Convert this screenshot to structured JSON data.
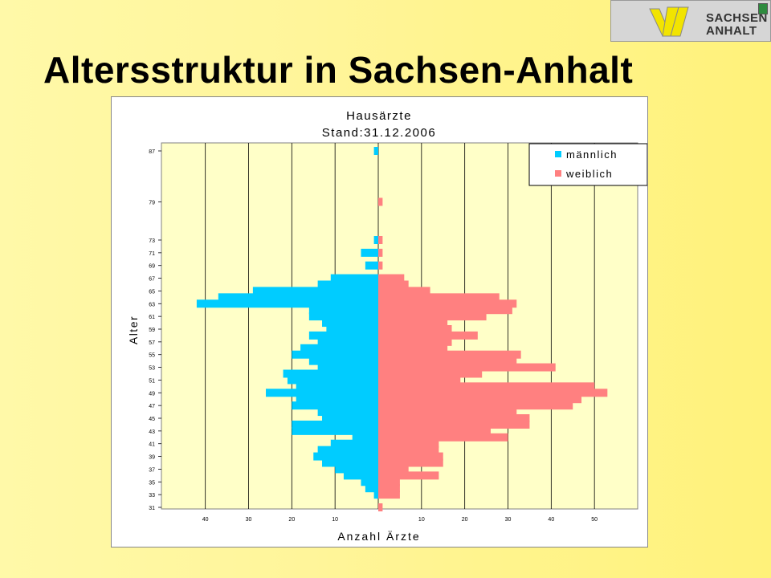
{
  "slide": {
    "title": "Altersstruktur in Sachsen-Anhalt",
    "logo_text_line1": "SACHSEN",
    "logo_text_line2": "ANHALT"
  },
  "chart_data": {
    "type": "bar",
    "orientation": "horizontal-pyramid",
    "title": "Hausärzte",
    "subtitle": "Stand:31.12.2006",
    "xlabel": "Anzahl Ärzte",
    "ylabel": "Alter",
    "grid": true,
    "legend_position": "top-right",
    "x_ticks_left": [
      "40",
      "30",
      "20",
      "10"
    ],
    "x_ticks_right": [
      "10",
      "20",
      "30",
      "40",
      "50"
    ],
    "x_max": 60,
    "y_tick_labels": [
      "87",
      "79",
      "73",
      "71",
      "69",
      "67",
      "65",
      "63",
      "61",
      "59",
      "57",
      "55",
      "53",
      "51",
      "49",
      "47",
      "45",
      "43",
      "41",
      "39",
      "37",
      "35",
      "33",
      "31"
    ],
    "ages": [
      87,
      79,
      73,
      71,
      69,
      67,
      66,
      65,
      64,
      63,
      62,
      61,
      60,
      59,
      58,
      57,
      56,
      55,
      54,
      53,
      52,
      51,
      50,
      49,
      48,
      47,
      46,
      45,
      44,
      43,
      42,
      41,
      40,
      39,
      38,
      37,
      36,
      35,
      34,
      33,
      32,
      31
    ],
    "series": [
      {
        "name": "männlich",
        "color": "#00ccff",
        "values": [
          1,
          0,
          1,
          4,
          3,
          11,
          14,
          29,
          37,
          42,
          16,
          16,
          13,
          12,
          16,
          14,
          18,
          20,
          16,
          14,
          22,
          21,
          19,
          26,
          19,
          20,
          14,
          13,
          20,
          20,
          6,
          11,
          14,
          15,
          13,
          10,
          8,
          4,
          3,
          1,
          0,
          0
        ],
        "side": "left"
      },
      {
        "name": "weiblich",
        "color": "#ff8080",
        "values": [
          0,
          1,
          1,
          1,
          1,
          6,
          7,
          12,
          28,
          32,
          31,
          25,
          16,
          17,
          23,
          17,
          16,
          33,
          32,
          41,
          24,
          19,
          50,
          53,
          47,
          45,
          32,
          35,
          35,
          26,
          30,
          14,
          14,
          15,
          15,
          7,
          14,
          5,
          5,
          5,
          0,
          1
        ],
        "side": "right"
      }
    ]
  }
}
